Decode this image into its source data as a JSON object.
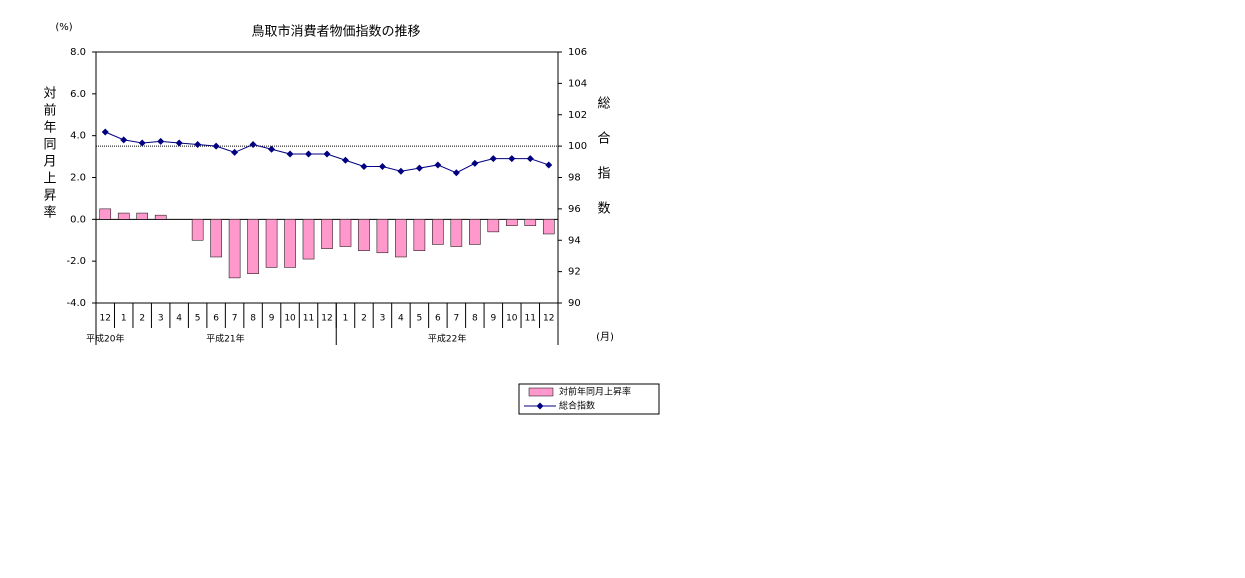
{
  "chart_data": {
    "type": "bar_line",
    "title": "鳥取市消費者物価指数の推移",
    "y_unit": "(%)",
    "y_label": "対前年同月上昇率",
    "y2_label": "総合指数",
    "x_unit": "(月)",
    "categories": [
      "12",
      "1",
      "2",
      "3",
      "4",
      "5",
      "6",
      "7",
      "8",
      "9",
      "10",
      "11",
      "12",
      "1",
      "2",
      "3",
      "4",
      "5",
      "6",
      "7",
      "8",
      "9",
      "10",
      "11",
      "12"
    ],
    "x_groups": [
      {
        "label": "平成20年",
        "count": 1
      },
      {
        "label": "平成21年",
        "count": 12
      },
      {
        "label": "平成22年",
        "count": 12
      }
    ],
    "series": [
      {
        "name": "対前年同月上昇率",
        "type": "bar",
        "color": "#ff99cc",
        "values": [
          0.5,
          0.3,
          0.3,
          0.2,
          0.0,
          -1.0,
          -1.8,
          -2.8,
          -2.6,
          -2.3,
          -2.3,
          -1.9,
          -1.4,
          -1.3,
          -1.5,
          -1.6,
          -1.8,
          -1.5,
          -1.2,
          -1.3,
          -1.2,
          -0.6,
          -0.3,
          -0.3,
          -0.7
        ]
      },
      {
        "name": "総合指数",
        "type": "line",
        "axis": "y2",
        "color": "#000080",
        "values": [
          100.9,
          100.4,
          100.2,
          100.3,
          100.2,
          100.1,
          100.0,
          99.6,
          100.1,
          99.8,
          99.5,
          99.5,
          99.5,
          99.1,
          98.7,
          98.7,
          98.4,
          98.6,
          98.8,
          98.3,
          98.9,
          99.2,
          99.2,
          99.2,
          98.8
        ]
      }
    ],
    "ylim": [
      -4,
      8
    ],
    "yticks": [
      {
        "value": -4,
        "label": "-4.0"
      },
      {
        "value": -2,
        "label": "-2.0"
      },
      {
        "value": 0,
        "label": "0.0"
      },
      {
        "value": 2,
        "label": "2.0"
      },
      {
        "value": 4,
        "label": "4.0"
      },
      {
        "value": 6,
        "label": "6.0"
      },
      {
        "value": 8,
        "label": "8.0"
      }
    ],
    "y2lim": [
      90,
      106
    ],
    "y2ticks": [
      90,
      92,
      94,
      96,
      98,
      100,
      102,
      104,
      106
    ],
    "y2_reference": 100
  }
}
